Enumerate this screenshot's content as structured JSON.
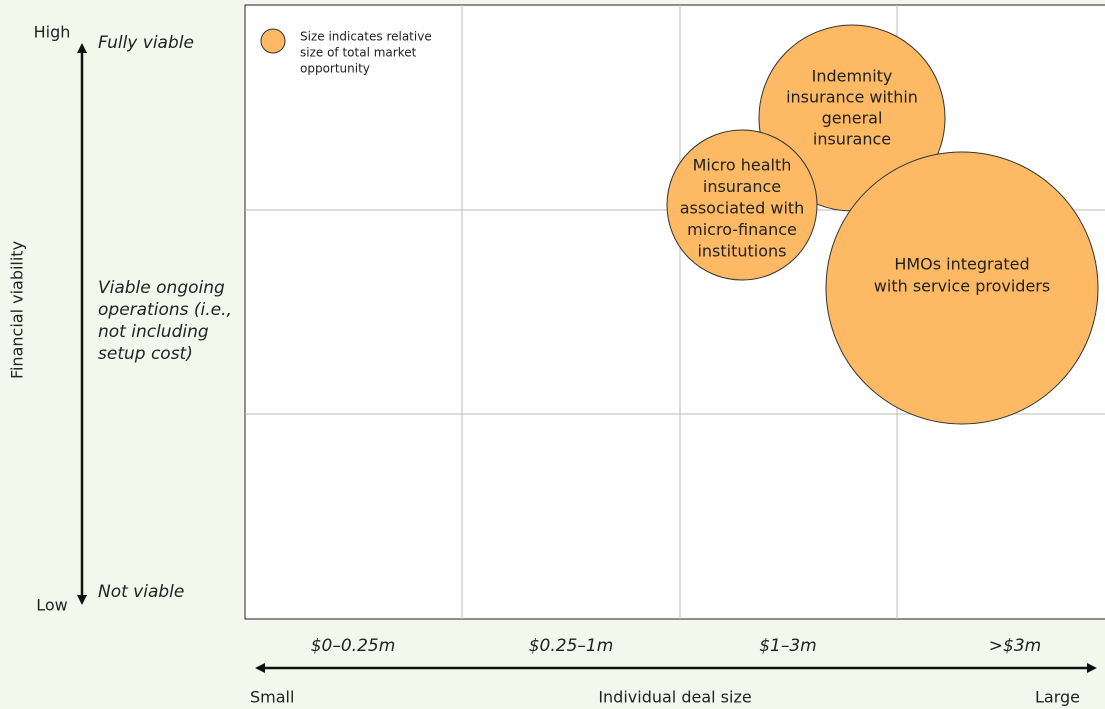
{
  "axis_y": {
    "title": "Financial viability",
    "high": "High",
    "low": "Low",
    "top_label": "Fully viable",
    "bottom_label": "Not viable",
    "middle_label": [
      "Viable ongoing",
      "operations (i.e.,",
      "not including",
      "setup cost)"
    ]
  },
  "axis_x": {
    "title": "Individual deal size",
    "left": "Small",
    "right": "Large",
    "categories": [
      "$0–0.25m",
      "$0.25–1m",
      "$1–3m",
      ">$3m"
    ]
  },
  "legend": [
    "Size indicates relative",
    "size of total market",
    "opportunity"
  ],
  "bubbles": [
    {
      "label": [
        "Indemnity",
        "insurance within",
        "general",
        "insurance"
      ]
    },
    {
      "label": [
        "Micro health",
        "insurance",
        "associated with",
        "micro-finance",
        "institutions"
      ]
    },
    {
      "label": [
        "HMOs integrated",
        "with service providers"
      ]
    }
  ]
}
